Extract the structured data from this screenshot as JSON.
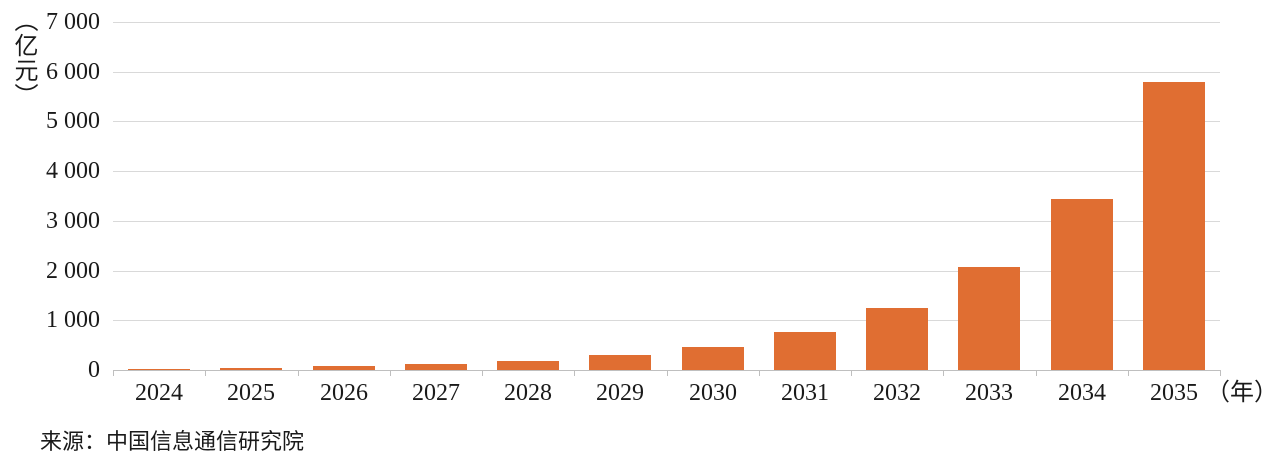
{
  "chart_data": {
    "type": "bar",
    "title": "",
    "categories": [
      "2024",
      "2025",
      "2026",
      "2027",
      "2028",
      "2029",
      "2030",
      "2031",
      "2032",
      "2033",
      "2034",
      "2035"
    ],
    "values": [
      20,
      50,
      90,
      130,
      190,
      300,
      460,
      770,
      1250,
      2080,
      3430,
      5790
    ],
    "xlabel": "（年）",
    "ylabel": "（亿元）",
    "ylim": [
      0,
      7000
    ],
    "ytick_interval": 1000,
    "ytick_labels": [
      "0",
      "1 000",
      "2 000",
      "3 000",
      "4 000",
      "5 000",
      "6 000",
      "7 000"
    ],
    "grid": true,
    "legend": "none",
    "bar_color": "#E06E32"
  },
  "source": {
    "label": "来源：中国信息通信研究院"
  },
  "colors": {
    "bar": "#E06E32",
    "gridline": "#D9D9D9",
    "axis": "#BFBFBF",
    "text": "#1A1A1A",
    "background": "#FFFFFF"
  }
}
